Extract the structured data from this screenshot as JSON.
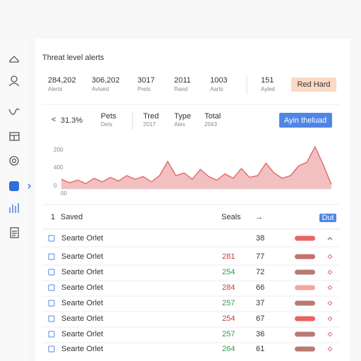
{
  "header": {
    "title": "Threat level alerts"
  },
  "stats": [
    {
      "value": "284,202",
      "label": "Alerts"
    },
    {
      "value": "306,202",
      "label": "Avlued"
    },
    {
      "value": "3017",
      "label": "Prets"
    },
    {
      "value": "2011",
      "label": "Rand"
    },
    {
      "value": "1003",
      "label": "Aarts"
    },
    {
      "value": "151",
      "label": "Ayled"
    }
  ],
  "stats_button": "Red Hard",
  "summary": {
    "back": "<",
    "percent": "31.3%",
    "percent_label": "Pets",
    "percent_sub": "Dets",
    "items": [
      {
        "label": "Tred",
        "value": "2017"
      },
      {
        "label": "Type",
        "value": "Ales"
      },
      {
        "label": "Total",
        "value": "2043"
      }
    ],
    "button": "Ayin theluad"
  },
  "chart_data": {
    "type": "area",
    "color": "#e06a6a",
    "axis_labels": [
      "200",
      "400",
      "0",
      "00"
    ],
    "ylim": [
      0,
      100
    ],
    "values": [
      22,
      14,
      20,
      12,
      24,
      16,
      26,
      18,
      30,
      22,
      28,
      16,
      30,
      62,
      30,
      36,
      22,
      44,
      28,
      20,
      34,
      24,
      46,
      26,
      30,
      58,
      36,
      24,
      30,
      52,
      60,
      95,
      55,
      10
    ]
  },
  "table": {
    "header": {
      "index": "1",
      "name": "Saved",
      "value": "Seals",
      "arrow": "→",
      "button": "Dut"
    },
    "rows": [
      {
        "name": "Searte Orlet",
        "count": "38",
        "bar_color": "#ea6464",
        "trend": "up"
      },
      {
        "name": "Searte Orlet",
        "value": "281",
        "value_color": "#d03a3a",
        "count": "77",
        "bar_color": "#c86f6f"
      },
      {
        "name": "Searte Orlet",
        "value": "254",
        "value_color": "#2e9e4e",
        "count": "72",
        "bar_color": "#b97a72"
      },
      {
        "name": "Searte Orlet",
        "value": "284",
        "value_color": "#d03a3a",
        "count": "66",
        "bar_color": "#f4a4a0"
      },
      {
        "name": "Searte Orlet",
        "value": "257",
        "value_color": "#2e9e4e",
        "count": "37",
        "bar_color": "#b97a72"
      },
      {
        "name": "Searte Orlet",
        "value": "254",
        "value_color": "#d03a3a",
        "count": "67",
        "bar_color": "#ea6464"
      },
      {
        "name": "Searte Orlet",
        "value": "257",
        "value_color": "#2e9e4e",
        "count": "36",
        "bar_color": "#b97a72"
      },
      {
        "name": "Searte Orlet",
        "value": "264",
        "value_color": "#2e9e4e",
        "count": "61",
        "bar_color": "#b97a72"
      }
    ]
  }
}
